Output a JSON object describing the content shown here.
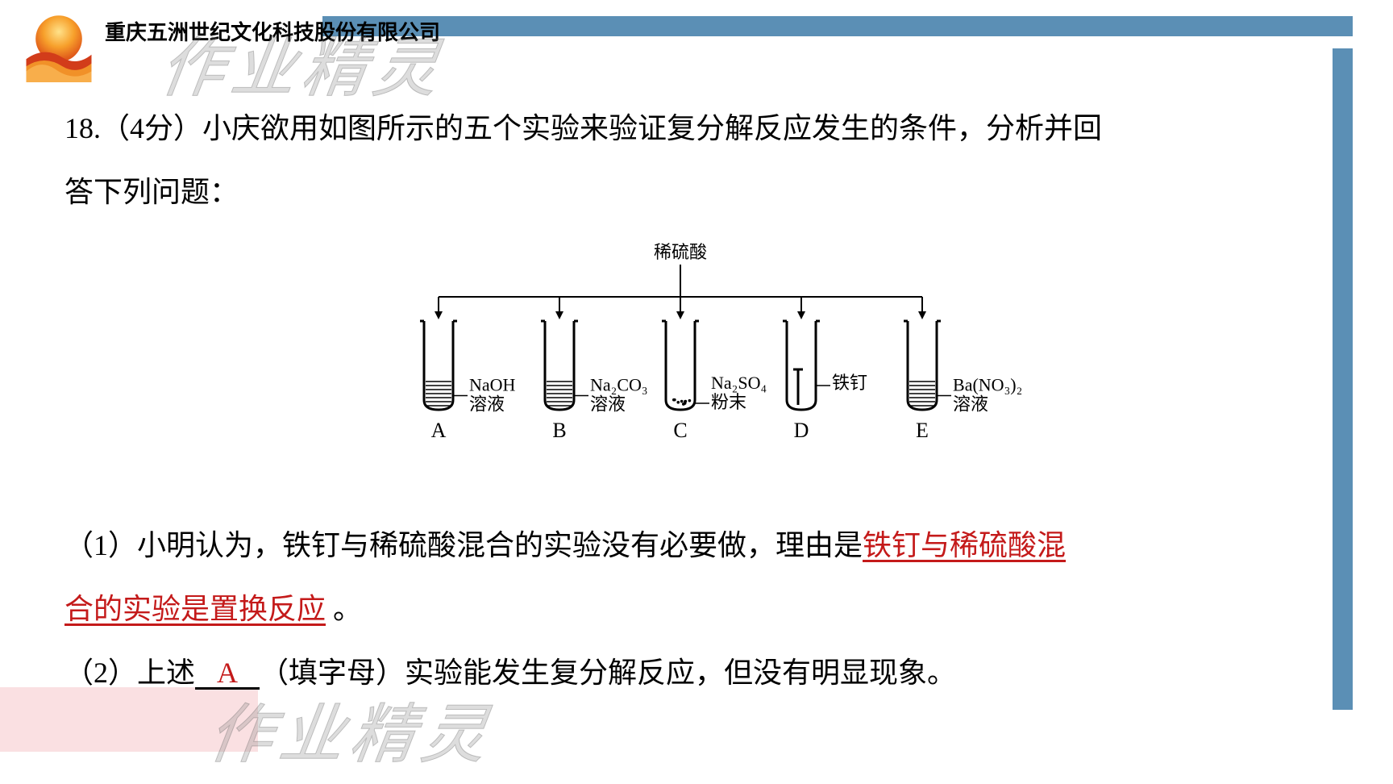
{
  "company": "重庆五洲世纪文化科技股份有限公司",
  "watermark": "作业精灵",
  "question": {
    "number": "18.",
    "points": "（4分）",
    "stem1": "小庆欲用如图所示的五个实验来验证复分解反应发生的条件，分析并回",
    "stem2": "答下列问题：",
    "part1_prefix": "（1）小明认为，铁钉与稀硫酸混合的实验没有必要做，理由是",
    "answer1a": "铁钉与稀硫酸混",
    "answer1b": "合的实验是置换反应",
    "period1": "。",
    "part2_prefix": "（2）上述",
    "answer2": "A",
    "part2_mid": "（填字母）实验能发生复分解反应，但没有明显现象。"
  },
  "diagram": {
    "top_label": "稀硫酸",
    "tubes": [
      {
        "id": "A",
        "label1": "NaOH",
        "label2": "溶液",
        "fill_h": 35
      },
      {
        "id": "B",
        "label1": "Na₂CO₃",
        "label2": "溶液",
        "fill_h": 35
      },
      {
        "id": "C",
        "label1": "Na₂SO₄",
        "label2": "粉末",
        "fill_h": 0
      },
      {
        "id": "D",
        "label1": "铁钉",
        "label2": "",
        "fill_h": 0
      },
      {
        "id": "E",
        "label1": "Ba(NO₃)₂",
        "label2": "溶液",
        "fill_h": 35
      }
    ],
    "colors": {
      "stroke": "#000000",
      "text": "#000000",
      "hatch": "#000000",
      "bg": "#ffffff"
    },
    "font_label": 22,
    "font_id": 26
  },
  "colors": {
    "bar": "#5b8fb5",
    "accent": "#f5c6cb",
    "answer": "#c41a1a",
    "text": "#000000",
    "bg": "#ffffff"
  }
}
